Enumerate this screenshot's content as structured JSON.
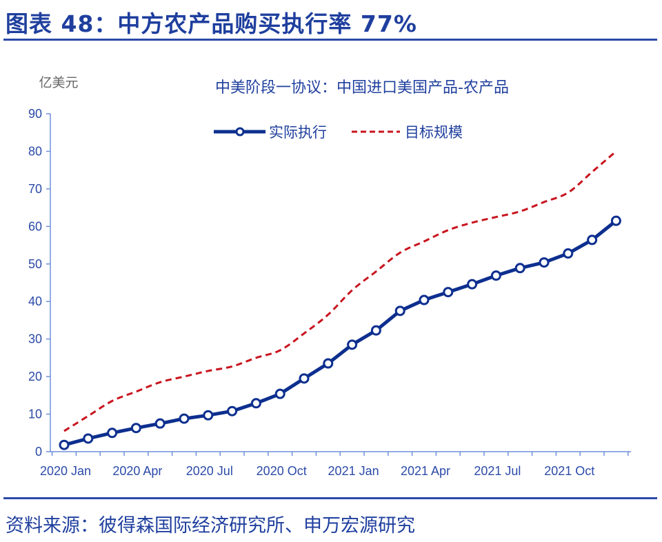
{
  "figure_title": "图表 48：中方农产品购买执行率 77%",
  "source": "资料来源：彼得森国际经济研究所、申万宏源研究",
  "chart_data": {
    "type": "line",
    "title": "中美阶段一协议：中国进口美国产品-农产品",
    "ylabel": "亿美元",
    "ylim": [
      0,
      90
    ],
    "yticks": [
      0,
      10,
      20,
      30,
      40,
      50,
      60,
      70,
      80,
      90
    ],
    "x": [
      "2020-01",
      "2020-02",
      "2020-03",
      "2020-04",
      "2020-05",
      "2020-06",
      "2020-07",
      "2020-08",
      "2020-09",
      "2020-10",
      "2020-11",
      "2020-12",
      "2021-01",
      "2021-02",
      "2021-03",
      "2021-04",
      "2021-05",
      "2021-06",
      "2021-07",
      "2021-08",
      "2021-09",
      "2021-10",
      "2021-11",
      "2021-12"
    ],
    "xtick_labels": [
      "2020 Jan",
      "2020 Apr",
      "2020 Jul",
      "2020 Oct",
      "2021 Jan",
      "2021 Apr",
      "2021 Jul",
      "2021 Oct"
    ],
    "legend_position": "top-center",
    "grid": false,
    "series": [
      {
        "name": "实际执行",
        "color": "#0d2f8f",
        "style": "solid-markers",
        "values": [
          1.8,
          3.5,
          5.0,
          6.3,
          7.5,
          8.8,
          9.7,
          10.8,
          12.9,
          15.4,
          19.5,
          23.5,
          28.5,
          32.3,
          37.5,
          40.4,
          42.5,
          44.6,
          46.9,
          48.9,
          50.4,
          52.8,
          56.4,
          61.5
        ]
      },
      {
        "name": "目标规模",
        "color": "#c8141e",
        "style": "dashed",
        "values": [
          5.5,
          9.5,
          13.5,
          16.0,
          18.5,
          20.0,
          21.5,
          22.7,
          25.0,
          27.0,
          31.5,
          36.5,
          43.0,
          48.0,
          53.0,
          56.0,
          59.0,
          61.0,
          62.5,
          64.0,
          66.5,
          69.0,
          74.5,
          80.0
        ]
      }
    ]
  }
}
